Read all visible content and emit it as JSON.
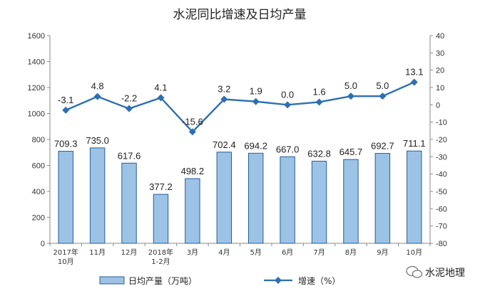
{
  "chart_data": {
    "type": "bar+line",
    "title": "水泥同比增速及日均产量",
    "categories": [
      [
        "2017年",
        "10月"
      ],
      [
        "11月"
      ],
      [
        "12月"
      ],
      [
        "2018年",
        "1-2月"
      ],
      [
        "3月"
      ],
      [
        "4月"
      ],
      [
        "5月"
      ],
      [
        "6月"
      ],
      [
        "7月"
      ],
      [
        "8月"
      ],
      [
        "9月"
      ],
      [
        "10月"
      ]
    ],
    "series": [
      {
        "name": "日均产量（万吨）",
        "type": "bar",
        "axis": "left",
        "values": [
          709.3,
          735.0,
          617.6,
          377.2,
          498.2,
          702.4,
          694.2,
          667.0,
          632.8,
          645.7,
          692.7,
          711.1
        ],
        "labels": [
          "709.3",
          "735.0",
          "617.6",
          "377.2",
          "498.2",
          "702.4",
          "694.2",
          "667.0",
          "632.8",
          "645.7",
          "692.7",
          "711.1"
        ],
        "color": "#9cc3e6"
      },
      {
        "name": "增速（%）",
        "type": "line",
        "axis": "right",
        "values": [
          -3.1,
          4.8,
          -2.2,
          4.1,
          -15.6,
          3.2,
          1.9,
          0.0,
          1.6,
          5.0,
          5.0,
          13.1
        ],
        "labels": [
          "-3.1",
          "4.8",
          "-2.2",
          "4.1",
          "-15.6",
          "3.2",
          "1.9",
          "0.0",
          "1.6",
          "5.0",
          "5.0",
          "13.1"
        ],
        "color": "#2e6fb0"
      }
    ],
    "y_left": {
      "min": 0,
      "max": 1600,
      "step": 200
    },
    "y_right": {
      "min": -80,
      "max": 40,
      "step": 10
    },
    "grid": false,
    "legend": "bottom"
  },
  "legend": {
    "bar_label": "日均产量（万吨）",
    "line_label": "增速（%）"
  },
  "watermark": {
    "text": "水泥地理",
    "icon": "wechat-icon"
  }
}
